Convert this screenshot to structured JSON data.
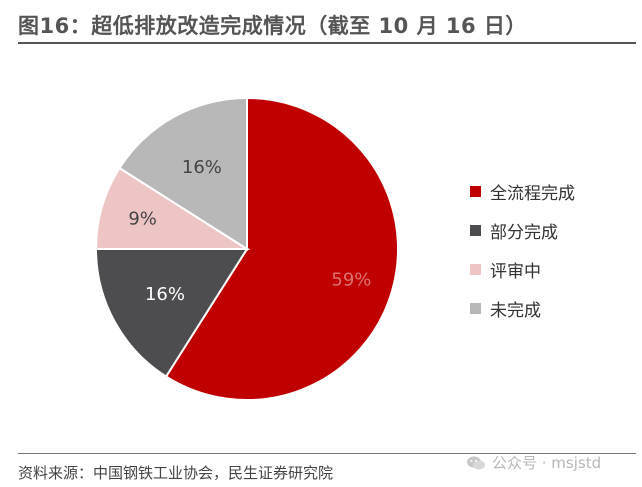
{
  "header": {
    "title": "图16：超低排放改造完成情况（截至 10 月 16 日）"
  },
  "footer": {
    "source": "资料来源：中国钢铁工业协会，民生证券研究院",
    "watermark": "公众号 · msjstd"
  },
  "chart_data": {
    "type": "pie",
    "title": "",
    "legend_position": "right",
    "labels": [
      "全流程完成",
      "部分完成",
      "评审中",
      "未完成"
    ],
    "values": [
      59,
      16,
      9,
      16
    ],
    "value_labels": [
      "59%",
      "16%",
      "9%",
      "16%"
    ],
    "colors": [
      "#c00000",
      "#4d4d50",
      "#eec5c5",
      "#b8b8b8"
    ],
    "label_colors": [
      "#e07070",
      "#ffffff",
      "#444444",
      "#444444"
    ],
    "start_angle": "12 o'clock",
    "direction": "clockwise"
  }
}
